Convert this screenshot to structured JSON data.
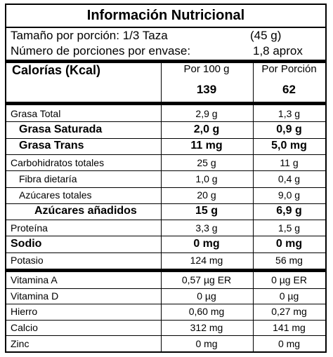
{
  "title": "Información Nutricional",
  "serving": {
    "size_label": "Tamaño por porción: 1/3 Taza",
    "size_value": "(45 g)",
    "count_label": "Número de porciones por envase:",
    "count_value": "1,8 aprox"
  },
  "header": {
    "name": "Calorías (Kcal)",
    "col1": "Por 100 g",
    "col2": "Por Porción",
    "val1": "139",
    "val2": "62"
  },
  "nutrients": [
    {
      "name": "Grasa Total",
      "per100": "2,9 g",
      "perServing": "1,3 g"
    },
    {
      "name": "Grasa Saturada",
      "per100": "2,0 g",
      "perServing": "0,9 g"
    },
    {
      "name": "Grasa Trans",
      "per100": "11 mg",
      "perServing": "5,0 mg"
    },
    {
      "name": "Carbohidratos totales",
      "per100": "25 g",
      "perServing": "11 g"
    },
    {
      "name": "Fibra dietaría",
      "per100": "1,0 g",
      "perServing": "0,4 g"
    },
    {
      "name": "Azúcares totales",
      "per100": "20 g",
      "perServing": "9,0 g"
    },
    {
      "name": "Azúcares añadidos",
      "per100": "15 g",
      "perServing": "6,9 g"
    },
    {
      "name": "Proteína",
      "per100": "3,3 g",
      "perServing": "1,5 g"
    },
    {
      "name": "Sodio",
      "per100": "0 mg",
      "perServing": "0 mg"
    },
    {
      "name": "Potasio",
      "per100": "124 mg",
      "perServing": "56 mg"
    }
  ],
  "vitamins": [
    {
      "name": "Vitamina A",
      "per100": "0,57 µg ER",
      "perServing": "0 µg ER"
    },
    {
      "name": "Vitamina D",
      "per100": "0 µg",
      "perServing": "0 µg"
    },
    {
      "name": "Hierro",
      "per100": "0,60 mg",
      "perServing": "0,27 mg"
    },
    {
      "name": "Calcio",
      "per100": "312 mg",
      "perServing": "141 mg"
    },
    {
      "name": "Zinc",
      "per100": "0 mg",
      "perServing": "0 mg"
    }
  ]
}
